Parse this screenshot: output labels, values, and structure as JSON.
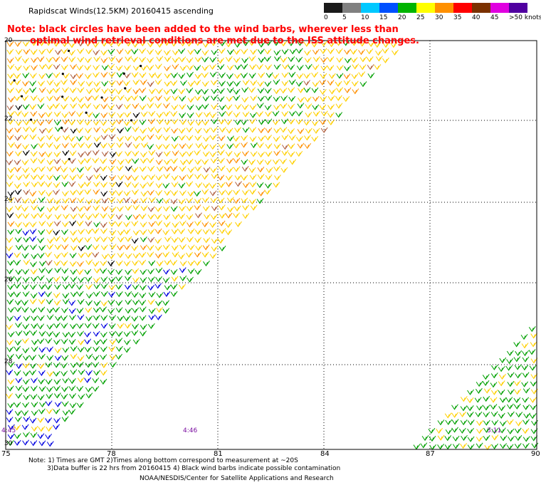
{
  "title": "Rapidscat Winds(12.5KM) 20160415 ascending",
  "notes": [
    "Note: black circles have been added to the wind barbs, wherever less than",
    "optimal wind retrieval conditions are met due to the ISS attitude changes."
  ],
  "legend": {
    "labels": [
      "0",
      "5",
      "10",
      "15",
      "20",
      "25",
      "30",
      "35",
      "40",
      "45",
      ">50 knots"
    ],
    "colors": [
      "#1a1a1a",
      "#808080",
      "#00c8ff",
      "#0050ff",
      "#00b400",
      "#ffff00",
      "#ff9000",
      "#ff0000",
      "#7a3000",
      "#e000e0",
      "#5000a0"
    ]
  },
  "map": {
    "lat_labels": [
      "20",
      "22",
      "24",
      "26",
      "28",
      "30"
    ],
    "lon_labels": [
      "75",
      "78",
      "81",
      "84",
      "87",
      "90"
    ],
    "time_labels": [
      "4:45",
      "4:46",
      "3:11"
    ],
    "barb_colors": {
      "yellow": "#ffd000",
      "orange": "#ff9000",
      "green": "#00a000",
      "brown": "#b06040",
      "blue": "#0000e0",
      "black": "#000000"
    }
  },
  "footer": {
    "line1": "Note: 1) Times are GMT 2)Times along bottom correspond to measurement at ~20S",
    "line2": "3)Data buffer is 22 hrs from 20160415 4) Black wind barbs indicate possible contamination",
    "line3": "NOAA/NESDIS/Center for Satellite Applications and Research"
  }
}
